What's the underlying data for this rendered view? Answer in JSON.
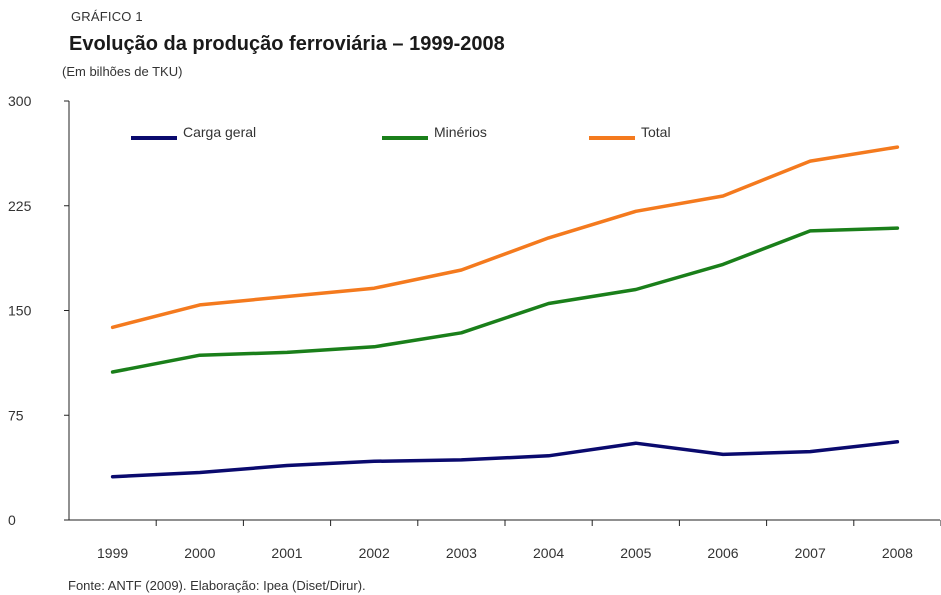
{
  "header": {
    "kicker": "GRÁFICO 1",
    "title": "Evolução da produção ferroviária – 1999-2008",
    "unit": "(Em bilhões de TKU)"
  },
  "footer": {
    "source": "Fonte: ANTF (2009). Elaboração: Ipea (Diset/Dirur)."
  },
  "chart_data": {
    "type": "line",
    "title": "Evolução da produção ferroviária – 1999-2008",
    "ylabel": "(Em bilhões de TKU)",
    "xlabel": "",
    "x": [
      "1999",
      "2000",
      "2001",
      "2002",
      "2003",
      "2004",
      "2005",
      "2006",
      "2007",
      "2008"
    ],
    "ylim": [
      0,
      300
    ],
    "yticks": [
      0,
      75,
      150,
      225,
      300
    ],
    "grid": false,
    "legend_position": "top",
    "series": [
      {
        "name": "Carga geral",
        "color": "#0a0a6e",
        "values": [
          31,
          34,
          39,
          42,
          43,
          46,
          55,
          47,
          49,
          56
        ]
      },
      {
        "name": "Minérios",
        "color": "#1a7f1a",
        "values": [
          106,
          118,
          120,
          124,
          134,
          155,
          165,
          183,
          207,
          209
        ]
      },
      {
        "name": "Total",
        "color": "#f47a1e",
        "values": [
          138,
          154,
          160,
          166,
          179,
          202,
          221,
          232,
          257,
          267
        ]
      }
    ]
  }
}
